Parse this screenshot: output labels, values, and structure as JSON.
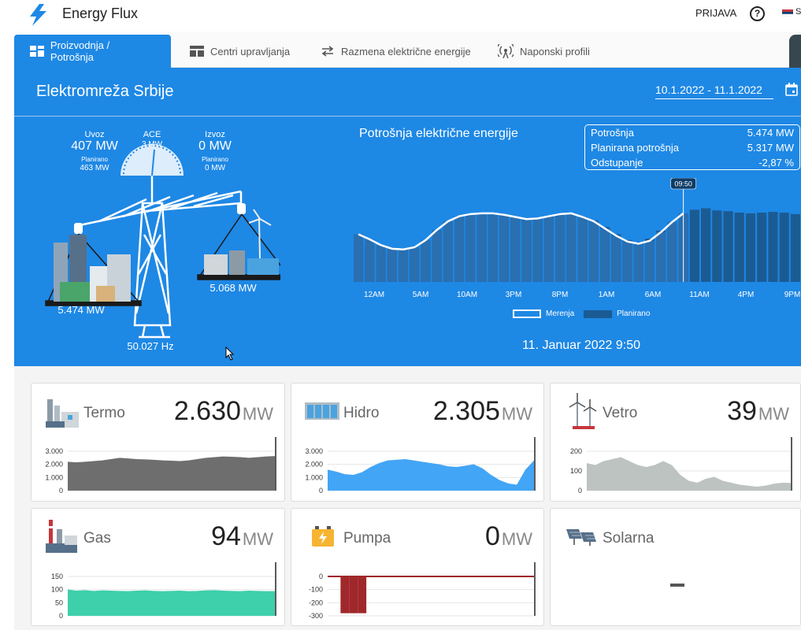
{
  "app": {
    "title": "Energy Flux",
    "login": "PRIJAVA",
    "help_icon": "help-icon"
  },
  "tabs": [
    {
      "label": "Proizvodnja / Potrošnja",
      "active": true
    },
    {
      "label": "Centri upravljanja"
    },
    {
      "label": "Razmena električne energije"
    },
    {
      "label": "Naponski profili"
    }
  ],
  "hero": {
    "region": "Elektromreža Srbije",
    "date_range": "10.1.2022 - 11.1.2022",
    "uvoz": {
      "label": "Uvoz",
      "value": "407 MW",
      "planned_label": "Planirano",
      "planned_value": "463 MW"
    },
    "ace": {
      "label": "ACE",
      "value": "3 MW"
    },
    "izvoz": {
      "label": "Izvoz",
      "value": "0 MW",
      "planned_label": "Planirano",
      "planned_value": "0 MW"
    },
    "left_value": "5.474 MW",
    "right_value": "5.068 MW",
    "frequency": "50.027 Hz",
    "chart_title": "Potrošnja električne energije",
    "summary": [
      {
        "label": "Potrošnja",
        "value": "5.474 MW"
      },
      {
        "label": "Planirana potrošnja",
        "value": "5.317 MW"
      },
      {
        "label": "Odstupanje",
        "value": "-2,87 %"
      }
    ],
    "timestamp": "11. Januar 2022 9:50"
  },
  "chart_data": [
    {
      "type": "bar",
      "title": "Potrošnja električne energije",
      "x_ticks": [
        "12AM",
        "5AM",
        "10AM",
        "3PM",
        "8PM",
        "1AM",
        "6AM",
        "11AM",
        "4PM",
        "9PM"
      ],
      "legend": [
        "Merenja",
        "Planirano"
      ],
      "series": [
        {
          "name": "Planirano",
          "values": [
            4950,
            4900,
            4850,
            4820,
            4830,
            4880,
            4980,
            5120,
            5230,
            5300,
            5330,
            5340,
            5330,
            5320,
            5300,
            5280,
            5290,
            5310,
            5330,
            5340,
            5300,
            5250,
            5160,
            5060,
            4980,
            4950,
            5000,
            5110,
            5230,
            5330,
            5400,
            5420,
            5390,
            5380,
            5360,
            5350,
            5360,
            5370,
            5360,
            5340
          ]
        },
        {
          "name": "Merenja",
          "values": [
            5060,
            4990,
            4910,
            4860,
            4850,
            4880,
            4980,
            5120,
            5240,
            5310,
            5340,
            5350,
            5350,
            5330,
            5300,
            5270,
            5280,
            5310,
            5340,
            5350,
            5300,
            5240,
            5140,
            5040,
            4960,
            4930,
            4970,
            5090,
            5230,
            5350
          ]
        }
      ],
      "cursor_label": "09:50"
    },
    {
      "type": "area",
      "name": "Termo",
      "value": "2.630",
      "unit": "MW",
      "y_ticks": [
        "3.000",
        "2.000",
        "1.000",
        "0"
      ],
      "ylim": [
        0,
        3000
      ],
      "values": [
        2200,
        2150,
        2200,
        2250,
        2300,
        2400,
        2500,
        2450,
        2400,
        2380,
        2350,
        2300,
        2280,
        2250,
        2300,
        2400,
        2500,
        2550,
        2600,
        2580,
        2550,
        2500,
        2550,
        2600,
        2630
      ]
    },
    {
      "type": "area",
      "name": "Hidro",
      "value": "2.305",
      "unit": "MW",
      "y_ticks": [
        "3.000",
        "2.000",
        "1.000",
        "0"
      ],
      "ylim": [
        0,
        3000
      ],
      "values": [
        1600,
        1450,
        1250,
        1200,
        1400,
        1800,
        2100,
        2300,
        2350,
        2400,
        2300,
        2200,
        2100,
        2000,
        1850,
        1800,
        1900,
        2000,
        1700,
        1200,
        800,
        550,
        450,
        1600,
        2305
      ]
    },
    {
      "type": "area",
      "name": "Vetro",
      "value": "39",
      "unit": "MW",
      "y_ticks": [
        "200",
        "100",
        "0"
      ],
      "ylim": [
        0,
        200
      ],
      "values": [
        140,
        130,
        150,
        160,
        170,
        150,
        130,
        120,
        130,
        150,
        130,
        80,
        50,
        40,
        60,
        70,
        50,
        40,
        30,
        25,
        20,
        25,
        35,
        40,
        39
      ]
    },
    {
      "type": "area",
      "name": "Gas",
      "value": "94",
      "unit": "MW",
      "y_ticks": [
        "150",
        "100",
        "50",
        "0"
      ],
      "ylim": [
        0,
        150
      ],
      "values": [
        100,
        96,
        98,
        95,
        97,
        96,
        95,
        94,
        96,
        97,
        95,
        94,
        95,
        96,
        94,
        95,
        97,
        98,
        96,
        95,
        94,
        96,
        95,
        94,
        94
      ]
    },
    {
      "type": "bar",
      "name": "Pumpa",
      "value": "0",
      "unit": "MW",
      "y_ticks": [
        "0",
        "-100",
        "-200",
        "-300"
      ],
      "ylim": [
        -300,
        0
      ],
      "values": [
        0,
        0,
        -280,
        -280,
        -280,
        0,
        0,
        0,
        0,
        0,
        0,
        0,
        0,
        0,
        0,
        0,
        0,
        0,
        0,
        0,
        0,
        0,
        0,
        0,
        0
      ]
    },
    {
      "type": "area",
      "name": "Solarna",
      "value": "-",
      "unit": ""
    }
  ],
  "colors": {
    "primary": "#1e88e5",
    "planned_bar": "#1b5b93",
    "termo": "#6e6e6e",
    "hidro": "#42a5f5",
    "vetro": "#bcc3c0",
    "gas": "#3ecfab",
    "pumpa": "#a0272a"
  }
}
